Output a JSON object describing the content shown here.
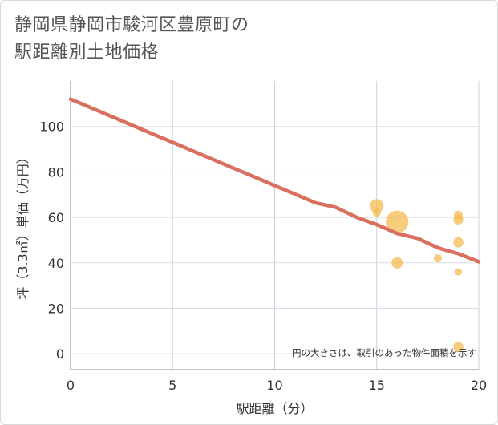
{
  "title_lines": [
    "静岡県静岡市駿河区豊原町の",
    "駅距離別土地価格"
  ],
  "chart_data": {
    "type": "scatter",
    "title": "静岡県静岡市駿河区豊原町の駅距離別土地価格",
    "xlabel": "駅距離（分）",
    "ylabel": "坪（3.3㎡）単価（万円）",
    "xlim": [
      0,
      20
    ],
    "ylim": [
      -7,
      120
    ],
    "xticks": [
      0,
      5,
      10,
      15,
      20
    ],
    "yticks": [
      0,
      20,
      40,
      60,
      80,
      100
    ],
    "grid": true,
    "note": "円の大きさは、取引のあった物件面積を示す",
    "colors": {
      "trend": "#d9705f",
      "bubble": "#f2b84b"
    },
    "trend_line": {
      "name": "trend",
      "x": [
        0,
        1,
        2,
        3,
        4,
        5,
        6,
        7,
        8,
        9,
        10,
        11,
        12,
        13,
        14,
        15,
        16,
        17,
        18,
        19,
        20
      ],
      "y": [
        112,
        108.2,
        104.4,
        100.6,
        96.8,
        93.0,
        89.2,
        85.4,
        81.6,
        77.8,
        74.0,
        70.2,
        66.4,
        64.4,
        60.1,
        56.8,
        52.9,
        50.8,
        46.6,
        44.0,
        40.5
      ]
    },
    "points": [
      {
        "x": 15,
        "y": 65,
        "size": 3.0
      },
      {
        "x": 15,
        "y": 62,
        "size": 1.0
      },
      {
        "x": 16,
        "y": 58,
        "size": 8.0
      },
      {
        "x": 16,
        "y": 40,
        "size": 2.0
      },
      {
        "x": 18,
        "y": 42,
        "size": 1.0
      },
      {
        "x": 19,
        "y": 61,
        "size": 1.2
      },
      {
        "x": 19,
        "y": 59,
        "size": 1.5
      },
      {
        "x": 19,
        "y": 49,
        "size": 1.6
      },
      {
        "x": 19,
        "y": 36,
        "size": 0.8
      },
      {
        "x": 19,
        "y": 3,
        "size": 1.6
      }
    ]
  }
}
